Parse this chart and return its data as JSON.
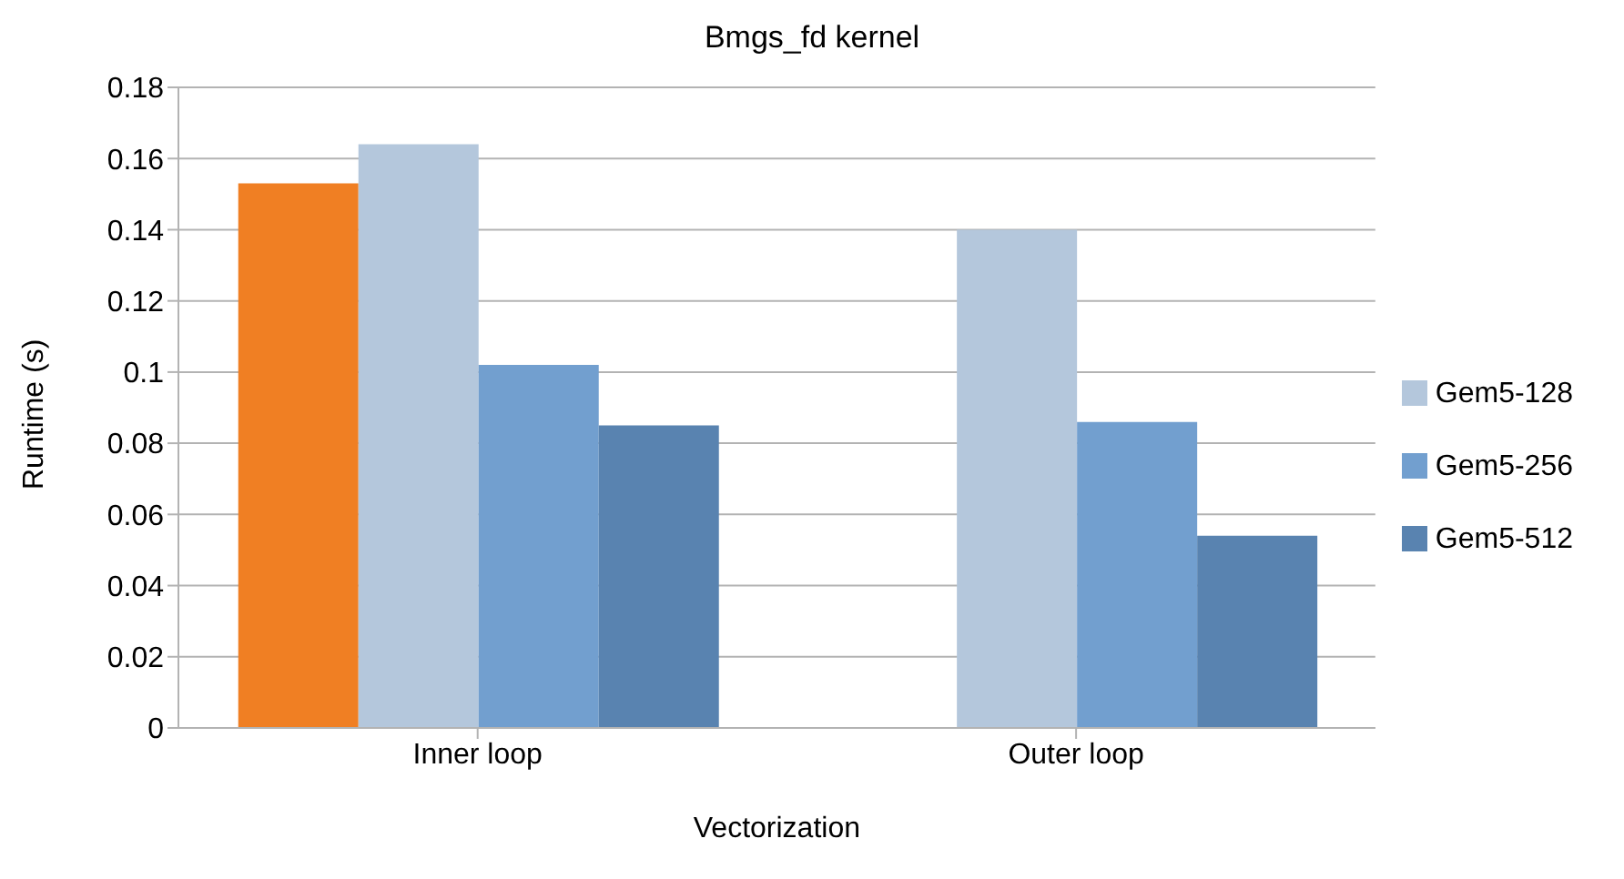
{
  "chart_data": {
    "type": "bar",
    "title": "Bmgs_fd kernel",
    "xlabel": "Vectorization",
    "ylabel": "Runtime (s)",
    "categories": [
      "Inner loop",
      "Outer loop"
    ],
    "series": [
      {
        "color": "#f07f23",
        "values": [
          0.153,
          null
        ]
      },
      {
        "name": "Gem5-128",
        "color": "#b4c7dc",
        "values": [
          0.164,
          0.14
        ]
      },
      {
        "name": "Gem5-256",
        "color": "#729fcf",
        "values": [
          0.102,
          0.086
        ]
      },
      {
        "name": "Gem5-512",
        "color": "#5983b0",
        "values": [
          0.085,
          0.054
        ]
      }
    ],
    "ylim": [
      0,
      0.18
    ],
    "yticks": [
      0,
      0.02,
      0.04,
      0.06,
      0.08,
      0.1,
      0.12,
      0.14,
      0.16,
      0.18
    ],
    "grid": "y",
    "legend": "right"
  }
}
